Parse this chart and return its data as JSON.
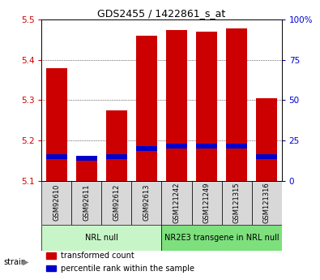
{
  "title": "GDS2455 / 1422861_s_at",
  "samples": [
    "GSM92610",
    "GSM92611",
    "GSM92612",
    "GSM92613",
    "GSM121242",
    "GSM121249",
    "GSM121315",
    "GSM121316"
  ],
  "red_values": [
    5.38,
    5.16,
    5.275,
    5.46,
    5.475,
    5.47,
    5.478,
    5.305
  ],
  "blue_values": [
    5.16,
    5.155,
    5.16,
    5.18,
    5.185,
    5.185,
    5.185,
    5.16
  ],
  "y_min": 5.1,
  "y_max": 5.5,
  "y_ticks_left": [
    5.1,
    5.2,
    5.3,
    5.4,
    5.5
  ],
  "y_ticks_right": [
    0,
    25,
    50,
    75,
    100
  ],
  "groups": [
    {
      "label": "NRL null",
      "start": 0,
      "end": 3,
      "color": "#c8f5c8"
    },
    {
      "label": "NR2E3 transgene in NRL null",
      "start": 4,
      "end": 7,
      "color": "#7de07d"
    }
  ],
  "strain_label": "strain",
  "legend": [
    {
      "color": "#cc0000",
      "label": "transformed count"
    },
    {
      "color": "#0000cc",
      "label": "percentile rank within the sample"
    }
  ],
  "bar_color": "#cc0000",
  "blue_color": "#0000cc",
  "bar_width": 0.7,
  "tick_label_color_left": "#cc0000",
  "tick_label_color_right": "#0000cc",
  "sample_box_color": "#d8d8d8",
  "title_fontsize": 9,
  "tick_fontsize": 7.5,
  "sample_fontsize": 6,
  "group_fontsize": 7,
  "legend_fontsize": 7
}
